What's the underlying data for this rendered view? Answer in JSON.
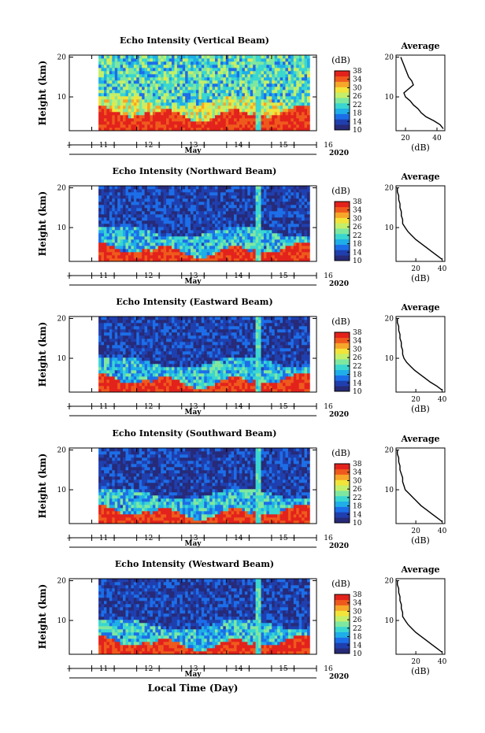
{
  "figure": {
    "xlabel": "Local Time (Day)",
    "month_label": "May",
    "year_label": "2020",
    "ylabel": "Height (km)",
    "colorbar_unit": "(dB)",
    "avg_title": "Average",
    "avg_xlabel": "(dB)"
  },
  "colors": {
    "background": "#ffffff",
    "marker_blue": "#1f3fae",
    "colormap": [
      "#262a78",
      "#1f3fae",
      "#1c6ee8",
      "#1faee8",
      "#3ad6d0",
      "#7ee7a0",
      "#c4ef6a",
      "#f2e43a",
      "#f6a628",
      "#ef5a1c",
      "#e3221c"
    ]
  },
  "chart_data": [
    {
      "type": "heatmap",
      "title": "Echo Intensity (Vertical Beam)",
      "ylabel": "Height (km)",
      "yticks": [
        10,
        20
      ],
      "ylim": [
        1.5,
        20.5
      ],
      "xlim": [
        10.5,
        16.0
      ],
      "xticks": [
        11,
        12,
        13,
        14,
        15,
        16
      ],
      "data_start_day": 11.15,
      "data_end_day": 15.85,
      "colorbar": {
        "label": "(dB)",
        "min": 10,
        "max": 38,
        "ticks": [
          10,
          14,
          18,
          22,
          26,
          30,
          34,
          38
        ]
      },
      "average_profile": {
        "title": "Average",
        "xlabel": "(dB)",
        "xticks": [
          20,
          40
        ],
        "xlim": [
          14,
          45
        ],
        "heights": [
          2,
          3,
          4,
          5,
          6,
          7,
          8,
          9,
          10,
          11,
          12,
          13,
          14,
          15,
          16,
          17,
          18,
          19,
          20
        ],
        "values": [
          44,
          42,
          38,
          33,
          30,
          28,
          25,
          23,
          20,
          19,
          22,
          25,
          24,
          22,
          21,
          20,
          19,
          18,
          17
        ]
      }
    },
    {
      "type": "heatmap",
      "title": "Echo Intensity (Northward Beam)",
      "ylabel": "Height (km)",
      "yticks": [
        10,
        20
      ],
      "ylim": [
        1.5,
        20.5
      ],
      "xlim": [
        10.5,
        16.0
      ],
      "xticks": [
        11,
        12,
        13,
        14,
        15,
        16
      ],
      "data_start_day": 11.15,
      "data_end_day": 15.85,
      "colorbar": {
        "label": "(dB)",
        "min": 10,
        "max": 38,
        "ticks": [
          10,
          14,
          18,
          22,
          26,
          30,
          34,
          38
        ]
      },
      "average_profile": {
        "title": "Average",
        "xlabel": "(dB)",
        "xticks": [
          20,
          40
        ],
        "xlim": [
          5,
          42
        ],
        "heights": [
          2,
          3,
          4,
          5,
          6,
          7,
          8,
          9,
          10,
          11,
          12,
          13,
          14,
          15,
          16,
          17,
          18,
          19,
          20
        ],
        "values": [
          40,
          36,
          32,
          28,
          24,
          20,
          17,
          14,
          12,
          10,
          10,
          9,
          9,
          8,
          8,
          7,
          7,
          6,
          6
        ]
      }
    },
    {
      "type": "heatmap",
      "title": "Echo Intensity (Eastward Beam)",
      "ylabel": "Height (km)",
      "yticks": [
        10,
        20
      ],
      "ylim": [
        1.5,
        20.5
      ],
      "xlim": [
        10.5,
        16.0
      ],
      "xticks": [
        11,
        12,
        13,
        14,
        15,
        16
      ],
      "data_start_day": 11.15,
      "data_end_day": 15.85,
      "colorbar": {
        "label": "(dB)",
        "min": 10,
        "max": 38,
        "ticks": [
          10,
          14,
          18,
          22,
          26,
          30,
          34,
          38
        ]
      },
      "average_profile": {
        "title": "Average",
        "xlabel": "(dB)",
        "xticks": [
          20,
          40
        ],
        "xlim": [
          5,
          42
        ],
        "heights": [
          2,
          3,
          4,
          5,
          6,
          7,
          8,
          9,
          10,
          11,
          12,
          13,
          14,
          15,
          16,
          17,
          18,
          19,
          20
        ],
        "values": [
          40,
          36,
          31,
          27,
          23,
          19,
          16,
          13,
          11,
          10,
          10,
          9,
          9,
          8,
          8,
          7,
          7,
          6,
          6
        ]
      }
    },
    {
      "type": "heatmap",
      "title": "Echo Intensity (Southward Beam)",
      "ylabel": "Height (km)",
      "yticks": [
        10,
        20
      ],
      "ylim": [
        1.5,
        20.5
      ],
      "xlim": [
        10.5,
        16.0
      ],
      "xticks": [
        11,
        12,
        13,
        14,
        15,
        16
      ],
      "data_start_day": 11.15,
      "data_end_day": 15.85,
      "colorbar": {
        "label": "(dB)",
        "min": 10,
        "max": 38,
        "ticks": [
          10,
          14,
          18,
          22,
          26,
          30,
          34,
          38
        ]
      },
      "average_profile": {
        "title": "Average",
        "xlabel": "(dB)",
        "xticks": [
          20,
          40
        ],
        "xlim": [
          5,
          42
        ],
        "heights": [
          2,
          3,
          4,
          5,
          6,
          7,
          8,
          9,
          10,
          11,
          12,
          13,
          14,
          15,
          16,
          17,
          18,
          19,
          20
        ],
        "values": [
          40,
          36,
          32,
          28,
          24,
          21,
          18,
          15,
          12,
          11,
          10,
          10,
          9,
          8,
          8,
          7,
          7,
          6,
          6
        ]
      }
    },
    {
      "type": "heatmap",
      "title": "Echo Intensity (Westward Beam)",
      "ylabel": "Height (km)",
      "yticks": [
        10,
        20
      ],
      "ylim": [
        1.5,
        20.5
      ],
      "xlim": [
        10.5,
        16.0
      ],
      "xticks": [
        11,
        12,
        13,
        14,
        15,
        16
      ],
      "data_start_day": 11.15,
      "data_end_day": 15.85,
      "colorbar": {
        "label": "(dB)",
        "min": 10,
        "max": 38,
        "ticks": [
          10,
          14,
          18,
          22,
          26,
          30,
          34,
          38
        ]
      },
      "average_profile": {
        "title": "Average",
        "xlabel": "(dB)",
        "xticks": [
          20,
          40
        ],
        "xlim": [
          5,
          42
        ],
        "heights": [
          2,
          3,
          4,
          5,
          6,
          7,
          8,
          9,
          10,
          11,
          12,
          13,
          14,
          15,
          16,
          17,
          18,
          19,
          20
        ],
        "values": [
          40,
          36,
          32,
          28,
          24,
          20,
          17,
          14,
          12,
          10,
          10,
          9,
          9,
          8,
          8,
          7,
          7,
          6,
          6
        ]
      }
    }
  ]
}
